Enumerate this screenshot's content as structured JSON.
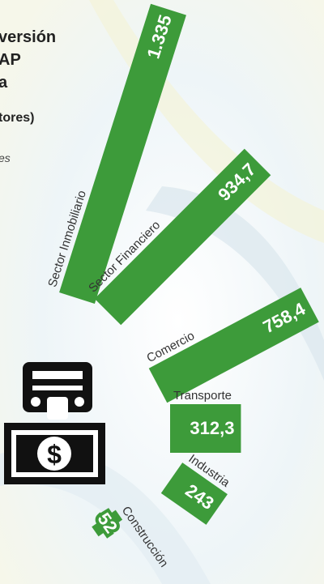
{
  "chart_data": {
    "type": "bar",
    "title_lines": [
      "versión",
      "AP",
      "a"
    ],
    "subtitle": "tores)",
    "note": "es",
    "categories": [
      "Sector Inmobiliario",
      "Sector Financiero",
      "Comercio",
      "Transporte",
      "Industria",
      "Construcción"
    ],
    "values": [
      1335,
      934.7,
      758.4,
      312.3,
      243,
      52
    ],
    "value_labels": [
      "1.335",
      "934,7",
      "758,4",
      "312,3",
      "243",
      "52"
    ],
    "color": "#3d9b3a"
  }
}
